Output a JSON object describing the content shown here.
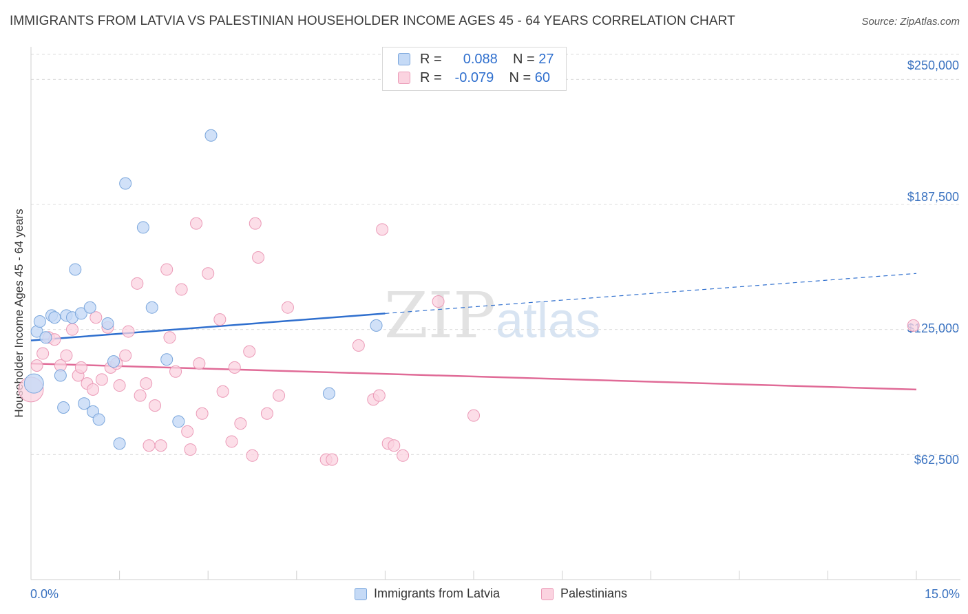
{
  "title": "IMMIGRANTS FROM LATVIA VS PALESTINIAN HOUSEHOLDER INCOME AGES 45 - 64 YEARS CORRELATION CHART",
  "source": "Source: ZipAtlas.com",
  "watermark": "ZIPatlas",
  "legend_top": {
    "rows": [
      {
        "r_label": "R =",
        "r_value": "0.088",
        "n_label": "N =",
        "n_value": "27"
      },
      {
        "r_label": "R =",
        "r_value": "-0.079",
        "n_label": "N =",
        "n_value": "60"
      }
    ]
  },
  "legend_bottom": [
    "Immigrants from Latvia",
    "Palestinians"
  ],
  "colors": {
    "latvia_fill": "#c5daf6",
    "latvia_stroke": "#7aa6dc",
    "latvia_line": "#2f6fce",
    "pal_fill": "#fbd3e0",
    "pal_stroke": "#eb9ab7",
    "pal_line": "#e06b97",
    "tick_text": "#3a72c0",
    "grid": "#dcdcdc"
  },
  "chart_data": {
    "type": "scatter",
    "title": "IMMIGRANTS FROM LATVIA VS PALESTINIAN HOUSEHOLDER INCOME AGES 45 - 64 YEARS CORRELATION CHART",
    "xlabel": "",
    "ylabel": "Householder Income Ages 45 - 64 years",
    "xlim": [
      0,
      15
    ],
    "ylim": [
      0,
      250000
    ],
    "x_tick_labels": [
      "0.0%",
      "15.0%"
    ],
    "y_tick_values": [
      62500,
      125000,
      187500,
      250000
    ],
    "y_tick_labels": [
      "$62,500",
      "$125,000",
      "$187,500",
      "$250,000"
    ],
    "grid": true,
    "legend_position": "top-center",
    "series": [
      {
        "name": "Immigrants from Latvia",
        "r": 0.088,
        "n": 27,
        "trend": {
          "x0": 0,
          "y0": 119500,
          "x1": 6.0,
          "y1": 133000,
          "dashed_to_x": 15,
          "dashed_to_y": 153000
        },
        "points": [
          [
            0.05,
            98000
          ],
          [
            0.1,
            124000
          ],
          [
            0.15,
            129000
          ],
          [
            0.25,
            121000
          ],
          [
            0.35,
            132000
          ],
          [
            0.4,
            131000
          ],
          [
            0.5,
            102000
          ],
          [
            0.55,
            86000
          ],
          [
            0.6,
            132000
          ],
          [
            0.7,
            131000
          ],
          [
            0.75,
            155000
          ],
          [
            0.85,
            133000
          ],
          [
            0.9,
            88000
          ],
          [
            1.0,
            136000
          ],
          [
            1.05,
            84000
          ],
          [
            1.15,
            80000
          ],
          [
            1.3,
            128000
          ],
          [
            1.4,
            109000
          ],
          [
            1.5,
            68000
          ],
          [
            1.6,
            198000
          ],
          [
            1.9,
            176000
          ],
          [
            2.05,
            136000
          ],
          [
            2.3,
            110000
          ],
          [
            2.5,
            79000
          ],
          [
            3.05,
            222000
          ],
          [
            5.05,
            93000
          ],
          [
            5.85,
            127000
          ]
        ]
      },
      {
        "name": "Palestinians",
        "r": -0.079,
        "n": 60,
        "trend": {
          "x0": 0,
          "y0": 108000,
          "x1": 15,
          "y1": 95000
        },
        "points": [
          [
            0.0,
            95000
          ],
          [
            0.1,
            107000
          ],
          [
            0.2,
            113000
          ],
          [
            0.3,
            121000
          ],
          [
            0.4,
            120000
          ],
          [
            0.5,
            107000
          ],
          [
            0.6,
            112000
          ],
          [
            0.7,
            125000
          ],
          [
            0.8,
            102000
          ],
          [
            0.85,
            106000
          ],
          [
            0.95,
            98000
          ],
          [
            1.05,
            95000
          ],
          [
            1.1,
            131000
          ],
          [
            1.2,
            100000
          ],
          [
            1.3,
            126000
          ],
          [
            1.35,
            106000
          ],
          [
            1.45,
            108000
          ],
          [
            1.5,
            97000
          ],
          [
            1.6,
            112000
          ],
          [
            1.65,
            124000
          ],
          [
            1.8,
            148000
          ],
          [
            1.85,
            92000
          ],
          [
            1.95,
            98000
          ],
          [
            2.0,
            67000
          ],
          [
            2.1,
            87000
          ],
          [
            2.2,
            67000
          ],
          [
            2.3,
            155000
          ],
          [
            2.35,
            121000
          ],
          [
            2.45,
            104000
          ],
          [
            2.55,
            145000
          ],
          [
            2.65,
            74000
          ],
          [
            2.7,
            65000
          ],
          [
            2.8,
            178000
          ],
          [
            2.85,
            108000
          ],
          [
            2.9,
            83000
          ],
          [
            3.0,
            153000
          ],
          [
            3.2,
            130000
          ],
          [
            3.25,
            94000
          ],
          [
            3.4,
            69000
          ],
          [
            3.45,
            106000
          ],
          [
            3.55,
            78000
          ],
          [
            3.7,
            114000
          ],
          [
            3.75,
            62000
          ],
          [
            3.8,
            178000
          ],
          [
            3.85,
            161000
          ],
          [
            4.0,
            83000
          ],
          [
            4.2,
            92000
          ],
          [
            4.35,
            136000
          ],
          [
            5.0,
            60000
          ],
          [
            5.1,
            60000
          ],
          [
            5.55,
            117000
          ],
          [
            5.8,
            90000
          ],
          [
            5.9,
            92000
          ],
          [
            5.95,
            175000
          ],
          [
            6.05,
            68000
          ],
          [
            6.15,
            67000
          ],
          [
            6.3,
            62000
          ],
          [
            6.9,
            139000
          ],
          [
            7.5,
            82000
          ],
          [
            14.95,
            127000
          ]
        ]
      }
    ]
  }
}
